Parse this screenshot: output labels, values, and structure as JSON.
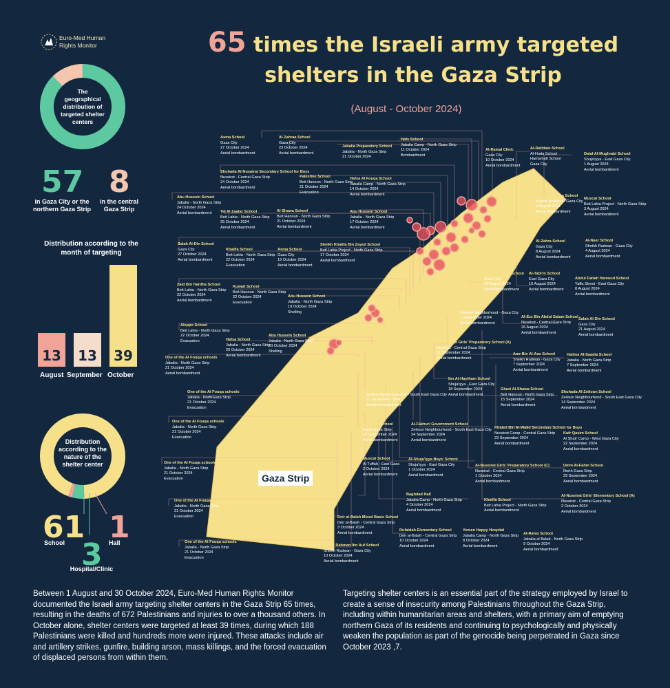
{
  "logo": {
    "line1": "Euro-Med Human",
    "line2": "Rights Monitor"
  },
  "title": {
    "number": "65",
    "line1": " times the Israeli army targeted",
    "line2": "shelters in the Gaza Strip"
  },
  "subtitle": "(August - October 2024)",
  "geo": {
    "label": "The geographical distribution of targeted shelter centers",
    "north_value": "57",
    "north_label": "in Gaza City or the northern Gaza Strip",
    "central_value": "8",
    "central_label": "in the central Gaza Strip",
    "colors": {
      "north": "#5dc9a0",
      "central": "#f4c6b0"
    }
  },
  "months": {
    "title": "Distribution according to the month of targeting",
    "bars": [
      {
        "label": "August",
        "value": 13,
        "text": "13",
        "color": "#f1a398"
      },
      {
        "label": "September",
        "value": 13,
        "text": "13",
        "color": "#f6dccb"
      },
      {
        "label": "October",
        "value": 39,
        "text": "39",
        "color": "#f6e08a"
      }
    ]
  },
  "nature": {
    "label": "Distribution according to the nature of the shelter center",
    "school_value": "61",
    "school_label": "School",
    "hospital_value": "3",
    "hospital_label": "Hospital/Clinic",
    "hall_value": "1",
    "hall_label": "Hall",
    "colors": {
      "school": "#f6e08a",
      "hospital": "#5dc9a0",
      "hall": "#f1a398"
    }
  },
  "map_label": "Gaza Strip",
  "cards": [
    {
      "name": "Asma School",
      "l1": "Gaza City",
      "l2": "27 October 2024",
      "l3": "Aerial bombardment"
    },
    {
      "name": "Al Zahraa School",
      "l1": "Gaza City",
      "l2": "23 October 2024",
      "l3": "Aerial bombardment"
    },
    {
      "name": "Jabalia Preparatory School",
      "l1": "Jabalia - North Gaza Strip",
      "l2": "21 October 2024",
      "l3": ""
    },
    {
      "name": "Hafs School",
      "l1": "Jabalia Camp - North Gaza Strip",
      "l2": "11 October 2024",
      "l3": "Bombardment"
    },
    {
      "name": "Al-Ramal Clinic",
      "l1": "Gaza City",
      "l2": "10 October 2024",
      "l3": "Aerial bombardment"
    },
    {
      "name": "Al-Rafidain School",
      "l1": "Al-Huda School",
      "l2": "Hamamah School",
      "l3": "Gaza City"
    },
    {
      "name": "Dalal Al-Mughrabi School",
      "l1": "Shuja'iyya - East Gaza City",
      "l2": "1 August 2024",
      "l3": "Aerial bombardment"
    },
    {
      "name": "Shuhada Al-Nusairat Secondary School for Boys",
      "l1": "Nuseirat - Central Gaza Strip",
      "l2": "24 October 2024",
      "l3": "Aerial bombardment"
    },
    {
      "name": "Palestine School",
      "l1": "Beit Hanoun - North Gaza Strip",
      "l2": "21 October 2024",
      "l3": "Evacuation"
    },
    {
      "name": "Hafsa Al Fouqa School",
      "l1": "Jabalia Camp - North Gaza Strip",
      "l2": "14 October 2024",
      "l3": "Aerial bombardment"
    },
    {
      "name": "Abu Hussein School",
      "l1": "Jabalia - North Gaza Strip",
      "l2": "24 October 2024",
      "l3": "Aerial bombardment"
    },
    {
      "name": "Tal Al Zaatar School",
      "l1": "Beit Lahia - North Gaza Strip",
      "l2": "25 October 2024",
      "l3": "Aerial bombardment"
    },
    {
      "name": "Al Shawa School",
      "l1": "Beit Hanoun - North Gaza Strip",
      "l2": "21 October 2024",
      "l3": "Aerial bombardment"
    },
    {
      "name": "Abu Hussein School",
      "l1": "Jabalia - North Gaza Strip",
      "l2": "17 October 2024",
      "l3": "Aerial bombardment"
    },
    {
      "name": "Hassan Salama School",
      "l1": "Sheikh Radwan - Gaza City",
      "l2": "4 August 2024",
      "l3": "Aerial bombardment"
    },
    {
      "name": "Muscat School",
      "l1": "Beit Lahia Project - North Gaza Strip",
      "l2": "3 August 2024",
      "l3": "Aerial bombardment"
    },
    {
      "name": "Salah Al-Din School",
      "l1": "Gaza City",
      "l2": "27 October 2024",
      "l3": "Aerial bombardment"
    },
    {
      "name": "Khalifa School",
      "l1": "Beit Lahia - North Gaza Strip",
      "l2": "22 October 2024",
      "l3": "Evacuation"
    },
    {
      "name": "Asma School",
      "l1": "Gaza City",
      "l2": "19 October 2024",
      "l3": "Aerial bombardment"
    },
    {
      "name": "Sheikh Khalifa Bin Zayed School",
      "l1": "Beit Lahia Project - North Gaza Strip",
      "l2": "17 October 2024",
      "l3": "Aerial bombardment"
    },
    {
      "name": "Al-Zahra School",
      "l1": "Gaza City",
      "l2": "8 August 2024",
      "l3": "Aerial bombardment"
    },
    {
      "name": "Al-Nasr School",
      "l1": "Sheikh Radwan - Gaza City",
      "l2": "4 August 2024",
      "l3": "Aerial bombardment"
    },
    {
      "name": "Zaid Bin Haritha School",
      "l1": "Beit Lahia - North Gaza Strip",
      "l2": "22 October 2024",
      "l3": "Aerial bombardment"
    },
    {
      "name": "Kuwait School",
      "l1": "Beit Hanoun - North Gaza Strip",
      "l2": "22 October 2024",
      "l3": "Evacuation"
    },
    {
      "name": "Abu Hussein School",
      "l1": "Jabalia - North Gaza Strip",
      "l2": "19 October 2024",
      "l3": "Shelling"
    },
    {
      "name": "Mustafa Hafez School",
      "l1": "Gaza City",
      "l2": "10 August 2024",
      "l3": "Aerial bombardment"
    },
    {
      "name": "Al-Tabi'in School",
      "l1": "East Gaza City",
      "l2": "10 August 2024",
      "l3": "Aerial bombardment"
    },
    {
      "name": "Abdul Fattah Hamoud School",
      "l1": "Yaffa Street - East Gaza City",
      "l2": "8 August 2024",
      "l3": "Aerial bombardment"
    },
    {
      "name": "Safad School",
      "l1": "Zeitoun Neighborhood - Gaza City",
      "l2": "1 September 2024",
      "l3": "Aerial bombardment"
    },
    {
      "name": "Al-Ezz Bin Abdul Salam School",
      "l1": "Nuseirat - Central Gaza Strip",
      "l2": "26 August 2024",
      "l3": "Aerial bombardment"
    },
    {
      "name": "Salah Al-Din School",
      "l1": "Gaza City",
      "l2": "21 August 2024",
      "l3": "Aerial bombardment"
    },
    {
      "name": "Aleppo School",
      "l1": "Beit Lahia - North Gaza Strip",
      "l2": "22 October 2024",
      "l3": "Evacuation"
    },
    {
      "name": "Hafsa School",
      "l1": "Jabalia - North Gaza Strip",
      "l2": "20 October 2024",
      "l3": "Aerial bombardment"
    },
    {
      "name": "Abu Hussein School",
      "l1": "Jabalia - North Gaza Strip",
      "l2": "20 October 2024",
      "l3": "Shelling"
    },
    {
      "name": "Al-Nuseirat Girls' Preparatory School (A)",
      "l1": "Nuseirat - Central Gaza Strip",
      "l2": "11 September 2024",
      "l3": "Aerial bombardment"
    },
    {
      "name": "One of the Al Fouqa schools",
      "l1": "Jabalia - North Gaza Strip",
      "l2": "21 October 2024",
      "l3": "Aerial bombardment"
    },
    {
      "name": "Amr Bin Al-Aas School",
      "l1": "Sheikh Radwan - Gaza City",
      "l2": "7 September 2024",
      "l3": "Aerial bombardment"
    },
    {
      "name": "Halima Al-Saadia School",
      "l1": "Jabalia - North Gaza Strip",
      "l2": "7 September 2024",
      "l3": "Aerial bombardment"
    },
    {
      "name": "One of the Al Fouqa schools",
      "l1": "Jabalia - NorthGaza Strip",
      "l2": "21 October 2024",
      "l3": "Evacuation"
    },
    {
      "name": "Ibn Al-Haytham School",
      "l1": "Shuja'iyya - East Gaza City",
      "l2": "18 September 2024",
      "l3": "Aerial bombardment"
    },
    {
      "name": "Al-Zeitoun School (C)",
      "l1": "Zeitoun Neighbourhood - South East Gaza City",
      "l2": "21 September 2024",
      "l3": "Aerial bombardment"
    },
    {
      "name": "Ghazi Al-Shawa School",
      "l1": "Beit Hanoun - North Gaza Strip",
      "l2": "15 September 2024",
      "l3": "Aerial bombardment"
    },
    {
      "name": "Shuhada Al-Zeitoun School",
      "l1": "Zeitoun Neighbourhood - South East Gaza City",
      "l2": "14 September 2024",
      "l3": "Aerial bombardment"
    },
    {
      "name": "One of the Al Fouqa schools",
      "l1": "Jabalia - North Gaza Strip",
      "l2": "21 October 2024",
      "l3": "Evacuation"
    },
    {
      "name": "Al-Fahija School",
      "l1": "North Gaza Strip",
      "l2": "26 September 2024",
      "l3": "Aerial bombardment"
    },
    {
      "name": "Al-Fakhuri Government School",
      "l1": "Zeitoun Neighbourhood - South East Gaza City",
      "l2": "24 September 2024",
      "l3": "Aerial bombardment"
    },
    {
      "name": "Khaled Bin Al-Walid Secondary School for Boys",
      "l1": "Nuseirat Camp - Central Gaza Strip",
      "l2": "23 September 2024",
      "l3": "Aerial bombardment"
    },
    {
      "name": "Kafr Qasim School",
      "l1": "Al Shati' Camp - West Gaza City",
      "l2": "22 September 2024",
      "l3": "Aerial bombardment"
    },
    {
      "name": "One of the Al Fouqa schools",
      "l1": "Jabalia - North Gaza Strip",
      "l2": "21 October 2024",
      "l3": "Evacuation"
    },
    {
      "name": "Muscat School",
      "l1": "Al Tuffah - East Gaza",
      "l2": "2 October 2024",
      "l3": "Aerial bombardment"
    },
    {
      "name": "Al-Shuja'iyya Boys' School",
      "l1": "Shuja'iyya - East Gaza City",
      "l2": "1 October 2024",
      "l3": "Aerial bombardment"
    },
    {
      "name": "Al-Nuseirat Girls' Preparatory School (C)",
      "l1": "Nuseirat - Central Gaza Strip",
      "l2": "1 October 2024",
      "l3": "Aerial bombardment"
    },
    {
      "name": "Umm Al-Fahm School",
      "l1": "North Gaza Strip",
      "l2": "29 September 2024",
      "l3": "Aerial bombardment"
    },
    {
      "name": "One of the Al Fouqa schools",
      "l1": "Jabalia - North Gaza Strip",
      "l2": "21 October 2024",
      "l3": "Evacuation"
    },
    {
      "name": "Baghdad Hall",
      "l1": "Jabalia Camp - North Gaza Strip",
      "l2": "4 October 2024",
      "l3": "Aerial bombardment"
    },
    {
      "name": "Khalifa School",
      "l1": "Beit Lahia Project - North Gaza Strip",
      "l2": "",
      "l3": "Aerial bombardment"
    },
    {
      "name": "Al-Nuseirat Girls' Elementary School (A)",
      "l1": "Nuseirat - Central Gaza Strip",
      "l2": "2 October 2024",
      "l3": "Aerial bombardment"
    },
    {
      "name": "Deir al-Balah Mixed Basic School",
      "l1": "Deir al-Balah - Central Gaza Strip",
      "l2": "3 October 2024",
      "l3": "Aerial bombardment"
    },
    {
      "name": "Rufaidah Elementary School",
      "l1": "Deir al-Balah - Central Gaza Strip",
      "l2": "10 October 2024",
      "l3": "Aerial bombardment"
    },
    {
      "name": "Yemen Happy Hospital",
      "l1": "Jabalia Camp - North Gaza Strip",
      "l2": "8 October 2024",
      "l3": "Aerial bombardment"
    },
    {
      "name": "Al-Rahsi School",
      "l1": "Jabalia al Balad - North Gaza Strip",
      "l2": "9 October 2024",
      "l3": "Aerial bombardment"
    },
    {
      "name": "One of the Al Fouqa schools",
      "l1": "Jabalia - North Gaza Strip",
      "l2": "21 October 2024",
      "l3": "Evacuation"
    },
    {
      "name": "Abdul Rahman Ibn Auf School",
      "l1": "Sheikh Radwan - Gaza City",
      "l2": "10 October 2024",
      "l3": "Aerial bombardment"
    }
  ],
  "para_left": "Between 1 August  and 30 October 2024, Euro-Med Human Rights Monitor documented the Israeli army targeting shelter centers in the Gaza Strip 65 times, resulting in the deaths of 672 Palestinians and injuries to over a thousand others. In October alone, shelter centers were targeted at least 39 times, during which 188 Palestinians were killed and hundreds more were injured. These attacks include air and artillery strikes, gunfire, building arson, mass killings, and the forced evacuation of displaced persons from within them.",
  "para_right": "Targeting shelter centers is an essential part of the strategy employed by Israel to create a sense of insecurity among Palestinians throughout the Gaza Strip, including within humanitarian areas and shelters, with a primary aim of emptying northern Gaza of its residents and continuing to psychologically and physically weaken the population as part of the genocide being perpetrated in Gaza since October 2023 ,7.",
  "colors": {
    "bg": "#13283f",
    "yellow": "#f6e08a",
    "salmon": "#f1a398",
    "teal": "#5dc9a0",
    "marker": "#e8505b"
  }
}
